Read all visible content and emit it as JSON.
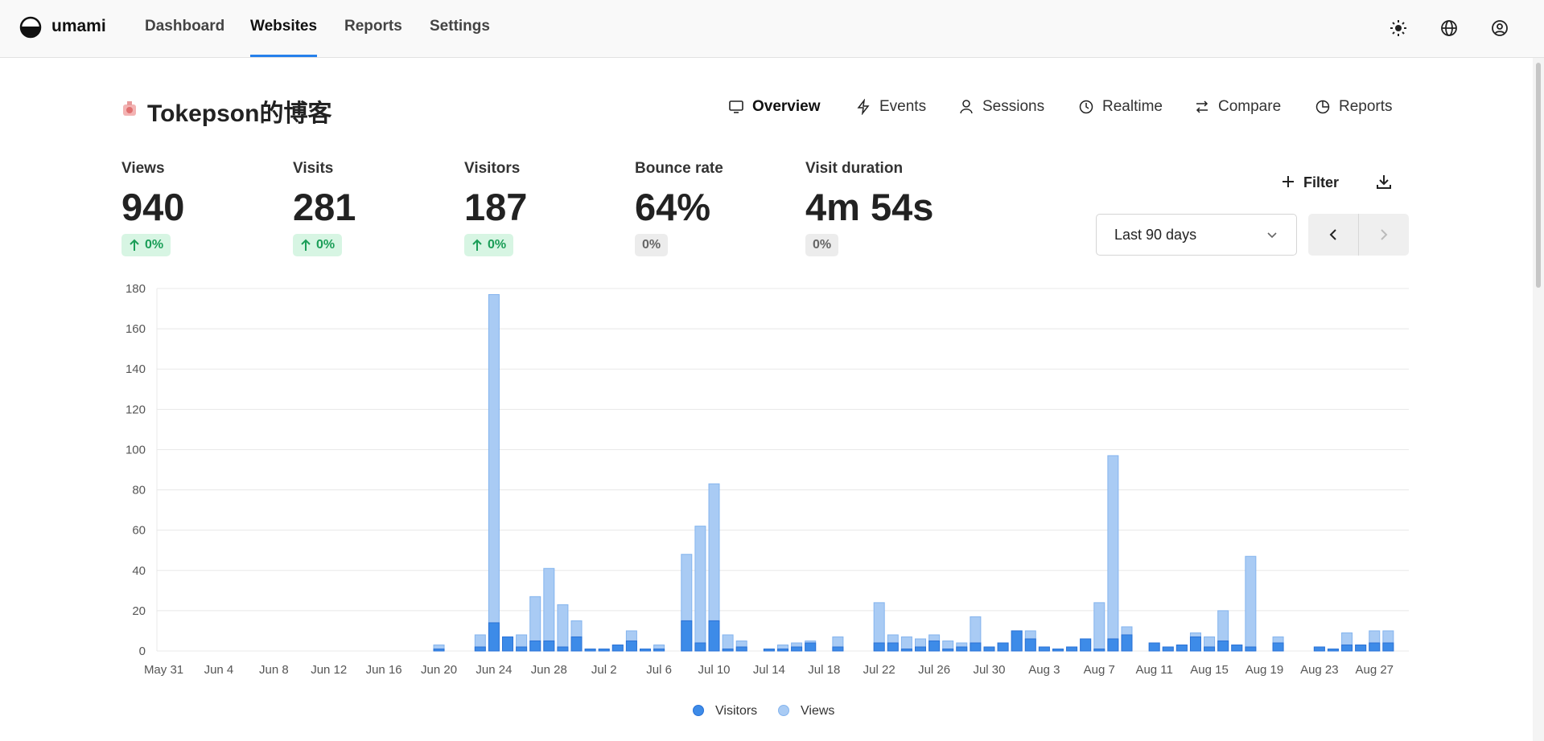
{
  "nav": {
    "brand": "umami",
    "items": [
      "Dashboard",
      "Websites",
      "Reports",
      "Settings"
    ],
    "active": 1
  },
  "website": {
    "title": "Tokepson的博客",
    "tabs": [
      "Overview",
      "Events",
      "Sessions",
      "Realtime",
      "Compare",
      "Reports"
    ],
    "active_tab": 0
  },
  "metrics": [
    {
      "label": "Views",
      "value": "940",
      "change": "0%",
      "trend": "up"
    },
    {
      "label": "Visits",
      "value": "281",
      "change": "0%",
      "trend": "up"
    },
    {
      "label": "Visitors",
      "value": "187",
      "change": "0%",
      "trend": "up"
    },
    {
      "label": "Bounce rate",
      "value": "64%",
      "change": "0%"
    },
    {
      "label": "Visit duration",
      "value": "4m 54s",
      "change": "0%"
    }
  ],
  "filter": "Filter",
  "date_range": "Last 90 days",
  "chart_data": {
    "type": "bar",
    "categories": [
      "May 31",
      null,
      null,
      null,
      "Jun 4",
      null,
      null,
      null,
      "Jun 8",
      null,
      null,
      null,
      "Jun 12",
      null,
      null,
      null,
      "Jun 16",
      null,
      null,
      null,
      "Jun 20",
      null,
      null,
      null,
      "Jun 24",
      null,
      null,
      null,
      "Jun 28",
      null,
      null,
      null,
      "Jul 2",
      null,
      null,
      null,
      "Jul 6",
      null,
      null,
      null,
      "Jul 10",
      null,
      null,
      null,
      "Jul 14",
      null,
      null,
      null,
      "Jul 18",
      null,
      null,
      null,
      "Jul 22",
      null,
      null,
      null,
      "Jul 26",
      null,
      null,
      null,
      "Jul 30",
      null,
      null,
      null,
      "Aug 3",
      null,
      null,
      null,
      "Aug 7",
      null,
      null,
      null,
      "Aug 11",
      null,
      null,
      null,
      "Aug 15",
      null,
      null,
      null,
      "Aug 19",
      null,
      null,
      null,
      "Aug 23",
      null,
      null,
      null,
      "Aug 27",
      null,
      null
    ],
    "series": [
      {
        "name": "Visitors",
        "color": "#3d8be8",
        "stroke": "#2a72d6",
        "values": [
          0,
          0,
          0,
          0,
          0,
          0,
          0,
          0,
          0,
          0,
          0,
          0,
          0,
          0,
          0,
          0,
          0,
          0,
          0,
          0,
          1,
          0,
          0,
          2,
          14,
          7,
          2,
          5,
          5,
          2,
          7,
          1,
          1,
          3,
          5,
          1,
          1,
          0,
          15,
          4,
          15,
          1,
          2,
          0,
          1,
          1,
          2,
          4,
          0,
          2,
          0,
          0,
          4,
          4,
          1,
          2,
          5,
          1,
          2,
          4,
          2,
          4,
          10,
          6,
          2,
          1,
          2,
          6,
          1,
          6,
          8,
          0,
          4,
          2,
          3,
          7,
          2,
          5,
          3,
          2,
          0,
          4,
          0,
          0,
          2,
          1,
          3,
          3,
          4,
          4,
          0
        ]
      },
      {
        "name": "Views",
        "color": "#a9cbf4",
        "stroke": "#84b4ee",
        "values": [
          0,
          0,
          0,
          0,
          0,
          0,
          0,
          0,
          0,
          0,
          0,
          0,
          0,
          0,
          0,
          0,
          0,
          0,
          0,
          0,
          3,
          0,
          0,
          8,
          177,
          7,
          8,
          27,
          41,
          23,
          15,
          1,
          1,
          3,
          10,
          1,
          3,
          0,
          48,
          62,
          83,
          8,
          5,
          0,
          1,
          3,
          4,
          5,
          0,
          7,
          0,
          0,
          24,
          8,
          7,
          6,
          8,
          5,
          4,
          17,
          2,
          4,
          10,
          10,
          2,
          1,
          2,
          6,
          24,
          97,
          12,
          0,
          4,
          2,
          3,
          9,
          7,
          20,
          3,
          47,
          0,
          7,
          0,
          0,
          2,
          1,
          9,
          3,
          10,
          10,
          0
        ]
      }
    ],
    "ylim": [
      0,
      180
    ],
    "yticks": [
      0,
      20,
      40,
      60,
      80,
      100,
      120,
      140,
      160,
      180
    ],
    "grid": true,
    "legend": "bottom"
  }
}
